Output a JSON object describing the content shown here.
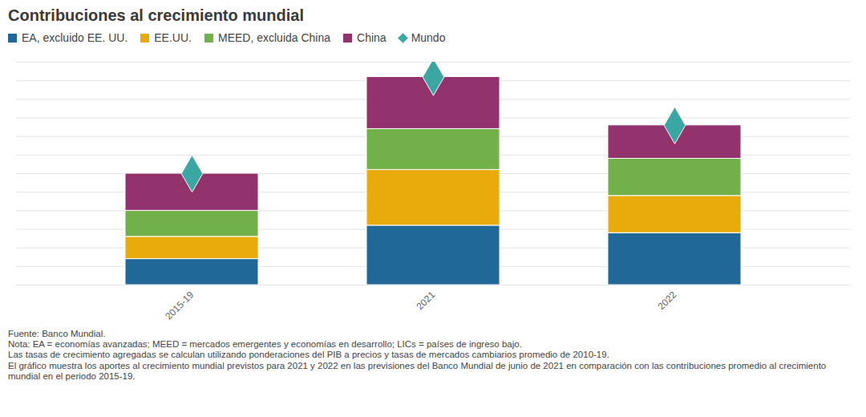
{
  "chart_data": {
    "type": "bar",
    "title": "Contribuciones al crecimiento mundial",
    "categories": [
      "2015-19",
      "2021",
      "2022"
    ],
    "series": [
      {
        "name": "EA, excluido EE. UU.",
        "color": "#1f6897",
        "values": [
          0.7,
          1.6,
          1.4
        ]
      },
      {
        "name": "EE.UU.",
        "color": "#e9ab0b",
        "values": [
          0.6,
          1.5,
          1.0
        ]
      },
      {
        "name": "MEED, excluida China",
        "color": "#72b04a",
        "values": [
          0.7,
          1.1,
          1.0
        ]
      },
      {
        "name": "China",
        "color": "#93336d",
        "values": [
          1.0,
          1.4,
          0.9
        ]
      },
      {
        "name": "Mundo",
        "color": "#3aa7a3",
        "type": "scatter",
        "marker": "diamond",
        "values": [
          3.0,
          5.6,
          4.3
        ]
      }
    ],
    "stacked": true,
    "ylim": [
      0,
      6
    ],
    "yticks": [
      0,
      0.5,
      1,
      1.5,
      2,
      2.5,
      3,
      3.5,
      4,
      4.5,
      5,
      5.5,
      6
    ],
    "grid": true,
    "tick_labels": "x",
    "legend": "top",
    "notes": [
      "Fuente: Banco Mundial.",
      "Nota: EA = economías avanzadas; MEED = mercados emergentes y economías en desarrollo; LICs = países de ingreso bajo.",
      "Las tasas de crecimiento agregadas se calculan utilizando ponderaciones del PIB a precios y tasas de mercados cambiarios promedio de 2010-19.",
      "El gráfico muestra los aportes al crecimiento mundial previstos para 2021 y 2022 en las previsiones del Banco Mundial de junio de 2021 en comparación con las contribuciones promedio al crecimiento mundial en el periodo 2015-19."
    ]
  }
}
